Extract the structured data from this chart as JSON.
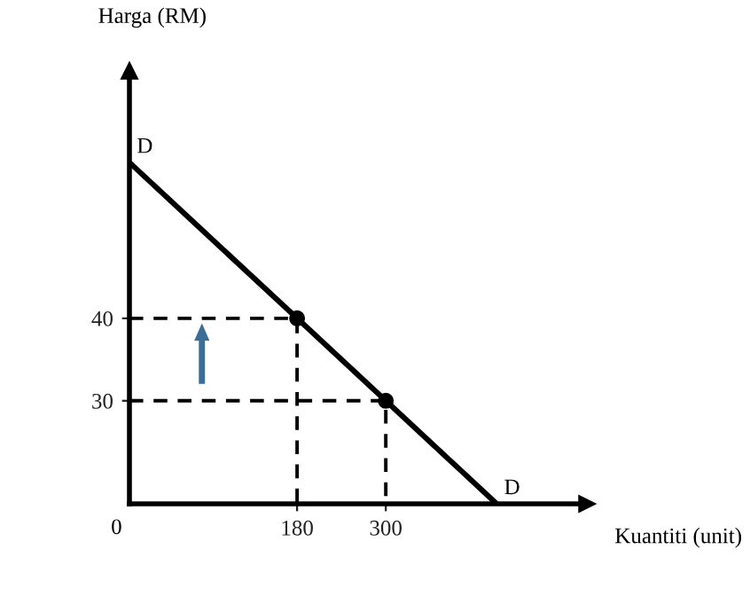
{
  "chart_data": {
    "type": "line",
    "xlabel": "Kuantiti (unit)",
    "ylabel": "Harga (RM)",
    "xlim": [
      -46.8,
      572
    ],
    "ylim": [
      17.5,
      70
    ],
    "xticks": [
      180,
      300
    ],
    "yticks": [
      30,
      40
    ],
    "grid": false,
    "marker": "none",
    "line_style": "solid",
    "series": [
      {
        "color": "#000000",
        "x": [
          -46.8,
          180,
          300,
          450
        ],
        "values": [
          58.9,
          40,
          30,
          17.5
        ]
      },
      {
        "type": "scatter",
        "color": "#000000",
        "marker": "circle",
        "x": [
          180,
          300
        ],
        "values": [
          40,
          30
        ]
      },
      {
        "color": "#000000",
        "line_style": "dashed",
        "x": [
          -46.8,
          180,
          180
        ],
        "values": [
          40,
          40,
          17.5
        ]
      },
      {
        "color": "#000000",
        "line_style": "dashed",
        "x": [
          -46.8,
          300,
          300
        ],
        "values": [
          30,
          30,
          17.5
        ]
      }
    ],
    "annotations": [
      {
        "text": "D",
        "x": -46.8,
        "y": 58.9
      },
      {
        "text": "D",
        "x": 450,
        "y": 17.5
      },
      "0"
    ]
  }
}
